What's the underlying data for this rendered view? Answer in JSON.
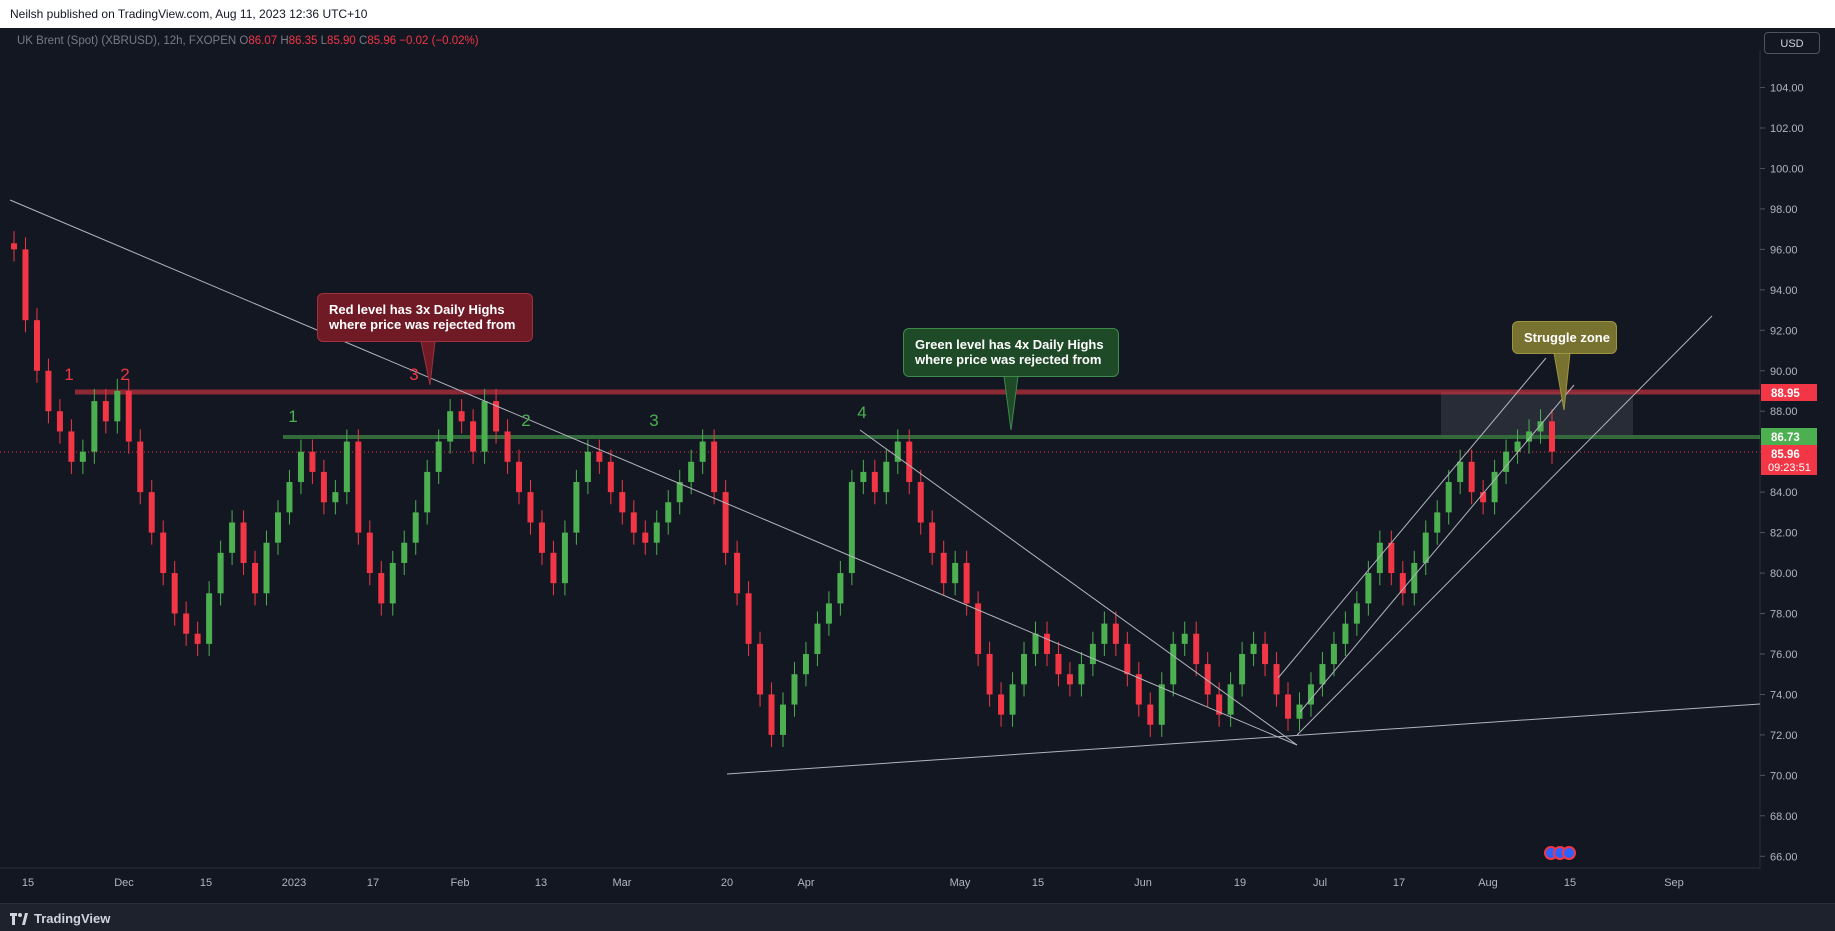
{
  "publish_header": "Neilsh published on TradingView.com, Aug 11, 2023 12:36 UTC+10",
  "legend": {
    "symbol": "UK Brent (Spot) (XBRUSD), 12h, FXOPEN",
    "o_label": "O",
    "o_value": "86.07",
    "h_label": "H",
    "h_value": "86.35",
    "l_label": "L",
    "l_value": "85.90",
    "c_label": "C",
    "c_value": "85.96",
    "change": "−0.02 (−0.02%)"
  },
  "currency_button": "USD",
  "footer": {
    "brand": "TradingView"
  },
  "colors": {
    "background": "#131722",
    "up": "#26a69a",
    "down": "#f23645",
    "green_candle": "#4caf50",
    "red_level": "#f23645",
    "green_level": "#4caf50",
    "trendline": "#b2b5be"
  },
  "annotations": {
    "red_callout": [
      "Red level has 3x Daily Highs",
      "where price was rejected from"
    ],
    "green_callout": [
      "Green level has 4x Daily Highs",
      "where price was rejected from"
    ],
    "struggle_callout": "Struggle zone",
    "red_counts": [
      "1",
      "2",
      "3"
    ],
    "green_counts": [
      "1",
      "2",
      "3",
      "4"
    ]
  },
  "price_tags": {
    "red_level": "88.95",
    "green_level": "86.73",
    "last_price": "85.96",
    "countdown": "09:23:51"
  },
  "chart_data": {
    "type": "candlestick",
    "title": "UK Brent (Spot) (XBRUSD), 12h, FXOPEN",
    "ylim": [
      65.2,
      105.6
    ],
    "y_ticks": [
      "66.00",
      "68.00",
      "70.00",
      "72.00",
      "74.00",
      "76.00",
      "78.00",
      "80.00",
      "82.00",
      "84.00",
      "86.00",
      "88.00",
      "90.00",
      "92.00",
      "94.00",
      "96.00",
      "98.00",
      "100.00",
      "102.00",
      "104.00"
    ],
    "x_ticks": [
      "15",
      "Dec",
      "15",
      "2023",
      "17",
      "Feb",
      "13",
      "Mar",
      "20",
      "Apr",
      "May",
      "15",
      "Jun",
      "19",
      "Jul",
      "17",
      "Aug",
      "15",
      "Sep"
    ],
    "horizontal_levels": [
      {
        "name": "red resistance",
        "value": 88.95
      },
      {
        "name": "green resistance",
        "value": 86.73
      },
      {
        "name": "last price",
        "value": 85.96
      }
    ],
    "series": [
      {
        "name": "XBRUSD close (approx.)",
        "values": [
          96.0,
          92.5,
          90.0,
          88.0,
          87.0,
          85.5,
          86.0,
          88.5,
          87.5,
          89.0,
          86.5,
          84.0,
          82.0,
          80.0,
          78.0,
          77.0,
          76.5,
          79.0,
          81.0,
          82.5,
          80.5,
          79.0,
          81.5,
          83.0,
          84.5,
          86.0,
          85.0,
          83.5,
          84.0,
          86.5,
          82.0,
          80.0,
          78.5,
          80.5,
          81.5,
          83.0,
          85.0,
          86.5,
          88.0,
          87.5,
          86.0,
          88.5,
          87.0,
          85.5,
          84.0,
          82.5,
          81.0,
          79.5,
          82.0,
          84.5,
          86.0,
          85.5,
          84.0,
          83.0,
          82.0,
          81.5,
          82.5,
          83.5,
          84.5,
          85.5,
          86.5,
          84.0,
          81.0,
          79.0,
          76.5,
          74.0,
          72.0,
          73.5,
          75.0,
          76.0,
          77.5,
          78.5,
          80.0,
          84.5,
          85.0,
          84.0,
          85.5,
          86.5,
          84.5,
          82.5,
          81.0,
          79.5,
          80.5,
          78.5,
          76.0,
          74.0,
          73.0,
          74.5,
          76.0,
          77.0,
          76.0,
          75.0,
          74.5,
          75.5,
          76.5,
          77.5,
          76.5,
          75.0,
          73.5,
          72.5,
          74.5,
          76.5,
          77.0,
          75.5,
          74.0,
          73.0,
          74.5,
          76.0,
          76.5,
          75.5,
          74.0,
          72.8,
          73.5,
          74.5,
          75.5,
          76.5,
          77.5,
          78.5,
          80.0,
          81.5,
          80.0,
          79.0,
          80.5,
          82.0,
          83.0,
          84.5,
          85.5,
          84.0,
          83.5,
          85.0,
          86.0,
          86.5,
          87.0,
          87.5,
          86.0
        ]
      }
    ]
  }
}
